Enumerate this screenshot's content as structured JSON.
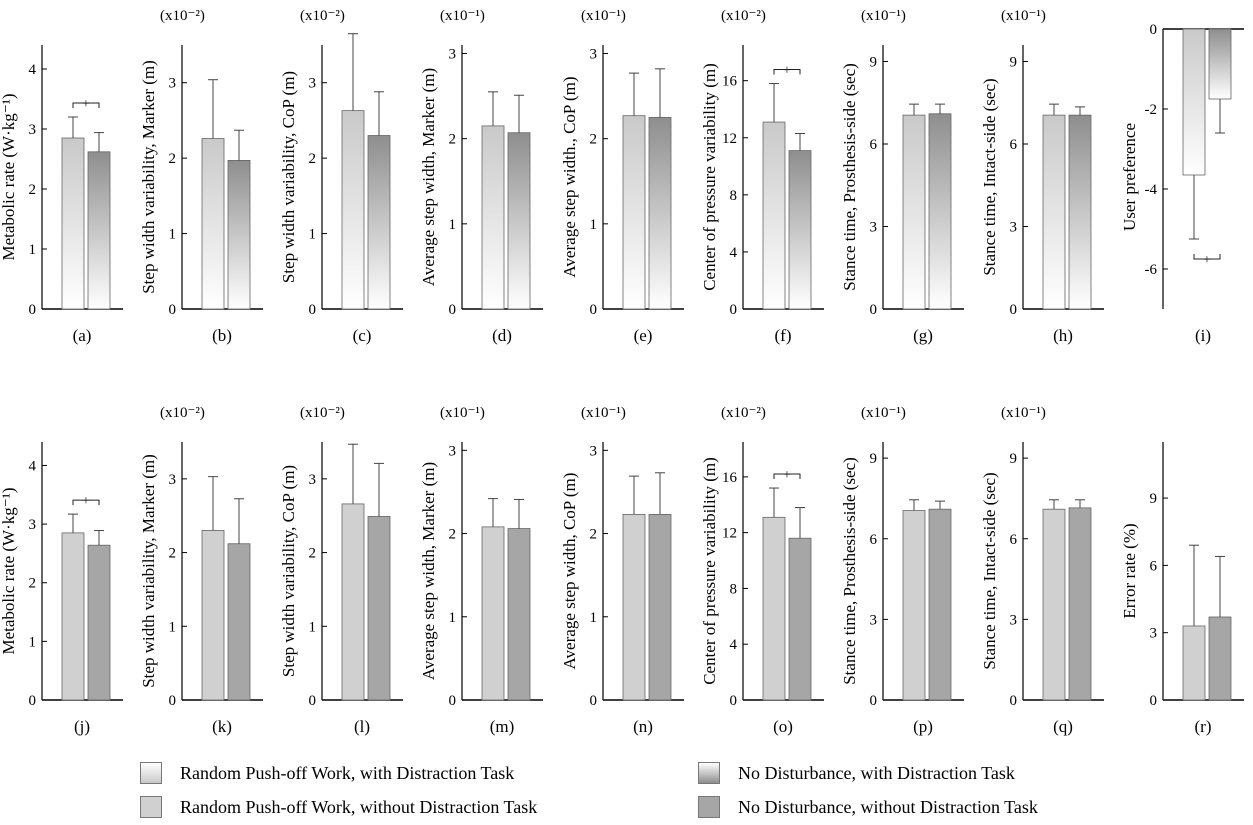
{
  "figure": {
    "colors": {
      "random_with": [
        "#ffffff",
        "#c9c9c9"
      ],
      "nodist_with": [
        "#ffffff",
        "#8e8e8e"
      ],
      "random_without": "#d0d0d0",
      "nodist_without": "#a6a6a6",
      "bar_border": "#666666",
      "axis": "#000000"
    },
    "legend": [
      {
        "label": "Random Push-off Work, with Distraction Task",
        "series_key": "random_with"
      },
      {
        "label": "No Disturbance, with Distraction Task",
        "series_key": "nodist_with"
      },
      {
        "label": "Random Push-off Work, without Distraction Task",
        "series_key": "random_without"
      },
      {
        "label": "No Disturbance, without Distraction Task",
        "series_key": "nodist_without"
      }
    ]
  },
  "chart_data": [
    {
      "panel": "(a)",
      "type": "bar",
      "style": "with",
      "ylabel": "Metabolic rate  (W·kg⁻¹)",
      "multiplier": "",
      "ylim": [
        0,
        4.4
      ],
      "yticks": [
        "0",
        "1",
        "2",
        "3",
        "4"
      ],
      "ytick_values": [
        0,
        1,
        2,
        3,
        4
      ],
      "series": [
        {
          "value": 2.85,
          "error": 0.35
        },
        {
          "value": 2.62,
          "error": 0.32
        }
      ],
      "significance": "above"
    },
    {
      "panel": "(b)",
      "type": "bar",
      "style": "with",
      "ylabel": "Step width variability, Marker (m)",
      "multiplier": "(x10⁻²)",
      "ylim": [
        0,
        3.5
      ],
      "yticks": [
        "0",
        "1",
        "2",
        "3"
      ],
      "ytick_values": [
        0,
        1,
        2,
        3
      ],
      "series": [
        {
          "value": 2.26,
          "error": 0.78
        },
        {
          "value": 1.97,
          "error": 0.4
        }
      ],
      "significance": ""
    },
    {
      "panel": "(c)",
      "type": "bar",
      "style": "with",
      "ylabel": "Step width variability, CoP (m)",
      "multiplier": "(x10⁻²)",
      "ylim": [
        0,
        3.5
      ],
      "yticks": [
        "0",
        "1",
        "2",
        "3"
      ],
      "ytick_values": [
        0,
        1,
        2,
        3
      ],
      "series": [
        {
          "value": 2.63,
          "error": 1.02
        },
        {
          "value": 2.3,
          "error": 0.58
        }
      ],
      "significance": ""
    },
    {
      "panel": "(d)",
      "type": "bar",
      "style": "with",
      "ylabel": "Average step width, Marker (m)",
      "multiplier": "(x10⁻¹)",
      "ylim": [
        0,
        3.1
      ],
      "yticks": [
        "0",
        "1",
        "2",
        "3"
      ],
      "ytick_values": [
        0,
        1,
        2,
        3
      ],
      "series": [
        {
          "value": 2.15,
          "error": 0.4
        },
        {
          "value": 2.07,
          "error": 0.44
        }
      ],
      "significance": ""
    },
    {
      "panel": "(e)",
      "type": "bar",
      "style": "with",
      "ylabel": "Average step width., CoP (m)",
      "multiplier": "(x10⁻¹)",
      "ylim": [
        0,
        3.1
      ],
      "yticks": [
        "0",
        "1",
        "2",
        "3"
      ],
      "ytick_values": [
        0,
        1,
        2,
        3
      ],
      "series": [
        {
          "value": 2.27,
          "error": 0.5
        },
        {
          "value": 2.25,
          "error": 0.57
        }
      ],
      "significance": ""
    },
    {
      "panel": "(f)",
      "type": "bar",
      "style": "with",
      "ylabel": "Center of pressure variability (m)",
      "multiplier": "(x10⁻²)",
      "ylim": [
        0,
        18.5
      ],
      "yticks": [
        "0",
        "4",
        "8",
        "12",
        "16"
      ],
      "ytick_values": [
        0,
        4,
        8,
        12,
        16
      ],
      "series": [
        {
          "value": 13.1,
          "error": 2.7
        },
        {
          "value": 11.1,
          "error": 1.2
        }
      ],
      "significance": "above"
    },
    {
      "panel": "(g)",
      "type": "bar",
      "style": "with",
      "ylabel": "Stance time, Prosthesis-side (sec)",
      "multiplier": "(x10⁻¹)",
      "ylim": [
        0,
        9.6
      ],
      "yticks": [
        "0",
        "3",
        "6",
        "9"
      ],
      "ytick_values": [
        0,
        3,
        6,
        9
      ],
      "series": [
        {
          "value": 7.05,
          "error": 0.4
        },
        {
          "value": 7.1,
          "error": 0.35
        }
      ],
      "significance": ""
    },
    {
      "panel": "(h)",
      "type": "bar",
      "style": "with",
      "ylabel": "Stance time, Intact-side (sec)",
      "multiplier": "(x10⁻¹)",
      "ylim": [
        0,
        9.6
      ],
      "yticks": [
        "0",
        "3",
        "6",
        "9"
      ],
      "ytick_values": [
        0,
        3,
        6,
        9
      ],
      "series": [
        {
          "value": 7.05,
          "error": 0.4
        },
        {
          "value": 7.05,
          "error": 0.3
        }
      ],
      "significance": ""
    },
    {
      "panel": "(i)",
      "type": "bar",
      "style": "with",
      "ylabel": "User preference",
      "multiplier": "",
      "ylim": [
        -7,
        0
      ],
      "yticks": [
        "0",
        "-2",
        "-4",
        "-6"
      ],
      "ytick_values": [
        0,
        -2,
        -4,
        -6
      ],
      "series": [
        {
          "value": -3.65,
          "error": 1.6
        },
        {
          "value": -1.75,
          "error": 0.85
        }
      ],
      "significance": "below"
    },
    {
      "panel": "(j)",
      "type": "bar",
      "style": "without",
      "ylabel": "Metabolic rate  (W·kg⁻¹)",
      "multiplier": "",
      "ylim": [
        0,
        4.4
      ],
      "yticks": [
        "0",
        "1",
        "2",
        "3",
        "4"
      ],
      "ytick_values": [
        0,
        1,
        2,
        3,
        4
      ],
      "series": [
        {
          "value": 2.85,
          "error": 0.32
        },
        {
          "value": 2.64,
          "error": 0.25
        }
      ],
      "significance": "above"
    },
    {
      "panel": "(k)",
      "type": "bar",
      "style": "without",
      "ylabel": "Step width variability, Marker (m)",
      "multiplier": "(x10⁻²)",
      "ylim": [
        0,
        3.5
      ],
      "yticks": [
        "0",
        "1",
        "2",
        "3"
      ],
      "ytick_values": [
        0,
        1,
        2,
        3
      ],
      "series": [
        {
          "value": 2.3,
          "error": 0.73
        },
        {
          "value": 2.12,
          "error": 0.61
        }
      ],
      "significance": ""
    },
    {
      "panel": "(l)",
      "type": "bar",
      "style": "without",
      "ylabel": "Step width variability, CoP (m)",
      "multiplier": "(x10⁻²)",
      "ylim": [
        0,
        3.5
      ],
      "yticks": [
        "0",
        "1",
        "2",
        "3"
      ],
      "ytick_values": [
        0,
        1,
        2,
        3
      ],
      "series": [
        {
          "value": 2.66,
          "error": 0.81
        },
        {
          "value": 2.49,
          "error": 0.72
        }
      ],
      "significance": ""
    },
    {
      "panel": "(m)",
      "type": "bar",
      "style": "without",
      "ylabel": "Average step width, Marker (m)",
      "multiplier": "(x10⁻¹)",
      "ylim": [
        0,
        3.1
      ],
      "yticks": [
        "0",
        "1",
        "2",
        "3"
      ],
      "ytick_values": [
        0,
        1,
        2,
        3
      ],
      "series": [
        {
          "value": 2.08,
          "error": 0.34
        },
        {
          "value": 2.06,
          "error": 0.35
        }
      ],
      "significance": ""
    },
    {
      "panel": "(n)",
      "type": "bar",
      "style": "without",
      "ylabel": "Average step width, CoP (m)",
      "multiplier": "(x10⁻¹)",
      "ylim": [
        0,
        3.1
      ],
      "yticks": [
        "0",
        "1",
        "2",
        "3"
      ],
      "ytick_values": [
        0,
        1,
        2,
        3
      ],
      "series": [
        {
          "value": 2.23,
          "error": 0.46
        },
        {
          "value": 2.23,
          "error": 0.5
        }
      ],
      "significance": ""
    },
    {
      "panel": "(o)",
      "type": "bar",
      "style": "without",
      "ylabel": "Center of pressure variability (m)",
      "multiplier": "(x10⁻²)",
      "ylim": [
        0,
        18.5
      ],
      "yticks": [
        "0",
        "4",
        "8",
        "12",
        "16"
      ],
      "ytick_values": [
        0,
        4,
        8,
        12,
        16
      ],
      "series": [
        {
          "value": 13.1,
          "error": 2.1
        },
        {
          "value": 11.6,
          "error": 2.2
        }
      ],
      "significance": "above"
    },
    {
      "panel": "(p)",
      "type": "bar",
      "style": "without",
      "ylabel": "Stance time, Prosthesis-side (sec)",
      "multiplier": "(x10⁻¹)",
      "ylim": [
        0,
        9.6
      ],
      "yticks": [
        "0",
        "3",
        "6",
        "9"
      ],
      "ytick_values": [
        0,
        3,
        6,
        9
      ],
      "series": [
        {
          "value": 7.05,
          "error": 0.4
        },
        {
          "value": 7.1,
          "error": 0.3
        }
      ],
      "significance": ""
    },
    {
      "panel": "(q)",
      "type": "bar",
      "style": "without",
      "ylabel": "Stance time, Intact-side (sec)",
      "multiplier": "(x10⁻¹)",
      "ylim": [
        0,
        9.6
      ],
      "yticks": [
        "0",
        "3",
        "6",
        "9"
      ],
      "ytick_values": [
        0,
        3,
        6,
        9
      ],
      "series": [
        {
          "value": 7.1,
          "error": 0.35
        },
        {
          "value": 7.15,
          "error": 0.3
        }
      ],
      "significance": ""
    },
    {
      "panel": "(r)",
      "type": "bar",
      "style": "without",
      "ylabel": "Error rate (%)",
      "multiplier": "",
      "ylim": [
        0,
        11.5
      ],
      "yticks": [
        "0",
        "3",
        "6",
        "9"
      ],
      "ytick_values": [
        0,
        3,
        6,
        9
      ],
      "series": [
        {
          "value": 3.3,
          "error": 3.6
        },
        {
          "value": 3.7,
          "error": 2.7
        }
      ],
      "significance": ""
    }
  ]
}
